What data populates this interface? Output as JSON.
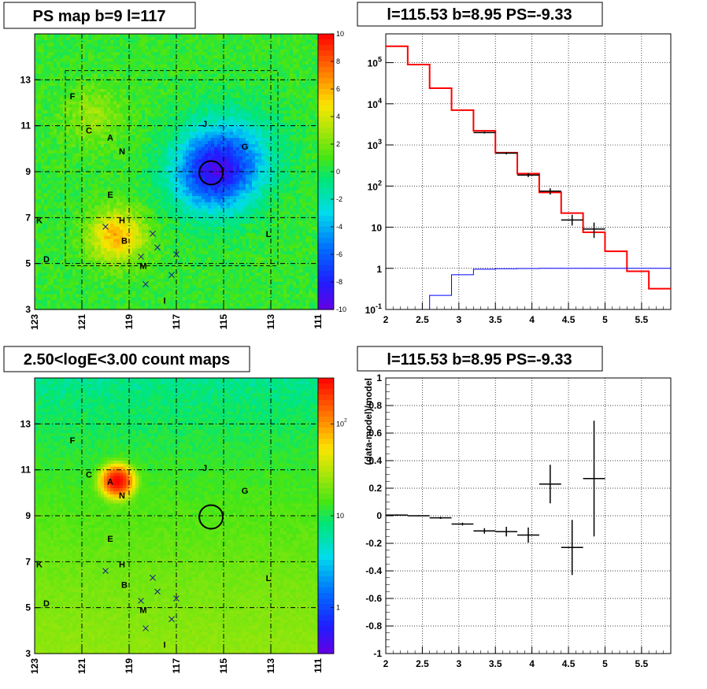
{
  "panels": {
    "tl_title": "PS map b=9 l=117",
    "tr_title": "l=115.53 b=8.95 PS=-9.33",
    "bl_title": "2.50<logE<3.00 count maps",
    "br_title": "l=115.53 b=8.95 PS=-9.33"
  },
  "chart_data": [
    {
      "type": "heatmap",
      "name": "ps_map",
      "title": "PS map b=9 l=117",
      "x_ticks": [
        "123",
        "121",
        "119",
        "117",
        "115",
        "113",
        "111"
      ],
      "y_ticks": [
        "3",
        "5",
        "7",
        "9",
        "11",
        "13"
      ],
      "xlim": [
        123,
        111
      ],
      "ylim": [
        3,
        15
      ],
      "colorbar_ticks": [
        "10",
        "8",
        "6",
        "4",
        "2",
        "0",
        "-2",
        "-4",
        "-6",
        "-8",
        "-10"
      ],
      "zlim": [
        -10,
        10
      ],
      "blobs": [
        {
          "l": 115.5,
          "b": 8.9,
          "value": -7.5,
          "sigma": 1.2
        },
        {
          "l": 114.5,
          "b": 9.8,
          "value": -3.5,
          "sigma": 1.3
        },
        {
          "l": 119.5,
          "b": 6.2,
          "value": 5.5,
          "sigma": 0.8
        },
        {
          "l": 120.5,
          "b": 11.4,
          "value": 2.0,
          "sigma": 0.9
        }
      ],
      "circle": {
        "l": 115.53,
        "b": 8.95
      },
      "crosses": [
        {
          "l": 120.0,
          "b": 6.6
        },
        {
          "l": 118.0,
          "b": 6.3
        },
        {
          "l": 117.8,
          "b": 5.7
        },
        {
          "l": 117.0,
          "b": 5.4
        },
        {
          "l": 118.5,
          "b": 5.3
        },
        {
          "l": 118.3,
          "b": 4.1
        },
        {
          "l": 117.2,
          "b": 4.5
        }
      ],
      "labels": [
        {
          "t": "F",
          "l": 121.4,
          "b": 12.3
        },
        {
          "t": "C",
          "l": 120.7,
          "b": 10.8
        },
        {
          "t": "A",
          "l": 119.8,
          "b": 10.5
        },
        {
          "t": "N",
          "l": 119.3,
          "b": 9.9
        },
        {
          "t": "J",
          "l": 115.8,
          "b": 11.1
        },
        {
          "t": "G",
          "l": 114.1,
          "b": 10.1
        },
        {
          "t": "E",
          "l": 119.8,
          "b": 8.0
        },
        {
          "t": "K",
          "l": 122.8,
          "b": 6.9
        },
        {
          "t": "H",
          "l": 119.3,
          "b": 6.9
        },
        {
          "t": "B",
          "l": 119.2,
          "b": 6.0
        },
        {
          "t": "L",
          "l": 113.1,
          "b": 6.3
        },
        {
          "t": "D",
          "l": 122.5,
          "b": 5.2
        },
        {
          "t": "M",
          "l": 118.4,
          "b": 4.9
        },
        {
          "t": "I",
          "l": 117.5,
          "b": 3.4
        }
      ]
    },
    {
      "type": "line",
      "name": "spectrum",
      "title": "l=115.53 b=8.95 PS=-9.33",
      "x_ticks": [
        "2",
        "2.5",
        "3",
        "3.5",
        "4",
        "4.5",
        "5",
        "5.5"
      ],
      "y_ticks": [
        "10^-1",
        "1",
        "10",
        "10^2",
        "10^3",
        "10^4",
        "10^5"
      ],
      "xlim": [
        2,
        5.9
      ],
      "ylim_log10": [
        -1,
        5.7
      ],
      "bin_edges": [
        2.0,
        2.3,
        2.6,
        2.9,
        3.2,
        3.5,
        3.8,
        4.1,
        4.4,
        4.7,
        5.0,
        5.3,
        5.6,
        5.9
      ],
      "series": [
        {
          "color": "#ff0000",
          "values": [
            250000,
            90000,
            24000,
            7000,
            2200,
            650,
            200,
            70,
            22,
            7.5,
            2.6,
            0.85,
            0.32
          ]
        },
        {
          "color": "#0000ff",
          "values": [
            0.05,
            0.05,
            0.22,
            0.7,
            0.95,
            0.98,
            0.99,
            1.0,
            1.0,
            1.0,
            1.0,
            1.0,
            1.0
          ]
        },
        {
          "color": "#000000",
          "points": [
            {
              "x": 3.35,
              "y": 2000,
              "ylo": 1900,
              "yhi": 2100
            },
            {
              "x": 3.65,
              "y": 630,
              "ylo": 590,
              "yhi": 670
            },
            {
              "x": 3.95,
              "y": 185,
              "ylo": 165,
              "yhi": 205
            },
            {
              "x": 4.25,
              "y": 75,
              "ylo": 62,
              "yhi": 88
            },
            {
              "x": 4.55,
              "y": 15,
              "ylo": 11,
              "yhi": 20
            },
            {
              "x": 4.85,
              "y": 9,
              "ylo": 5.5,
              "yhi": 13
            }
          ]
        }
      ]
    },
    {
      "type": "heatmap",
      "name": "count_map",
      "title": "2.50<logE<3.00 count maps",
      "x_ticks": [
        "123",
        "121",
        "119",
        "117",
        "115",
        "113",
        "111"
      ],
      "y_ticks": [
        "3",
        "5",
        "7",
        "9",
        "11",
        "13"
      ],
      "colorbar_ticks": [
        "10^2",
        "10",
        "1"
      ],
      "zlim_log10": [
        -0.5,
        2.5
      ],
      "source": {
        "l": 119.5,
        "b": 10.5,
        "counts": 300
      }
    },
    {
      "type": "scatter",
      "name": "residuals",
      "title": "l=115.53 b=8.95 PS=-9.33",
      "ylabel": "(data-model)/model",
      "x_ticks": [
        "2",
        "2.5",
        "3",
        "3.5",
        "4",
        "4.5",
        "5",
        "5.5"
      ],
      "y_ticks": [
        "-1",
        "-0.8",
        "-0.6",
        "-0.4",
        "-0.2",
        "0",
        "0.2",
        "0.4",
        "0.6",
        "0.8",
        "1"
      ],
      "xlim": [
        2,
        5.9
      ],
      "ylim": [
        -1,
        1
      ],
      "points": [
        {
          "x": 2.15,
          "y": 0.005,
          "err": 0.005
        },
        {
          "x": 2.45,
          "y": 0.0,
          "err": 0.005
        },
        {
          "x": 2.75,
          "y": -0.015,
          "err": 0.008
        },
        {
          "x": 3.05,
          "y": -0.06,
          "err": 0.01
        },
        {
          "x": 3.35,
          "y": -0.11,
          "err": 0.02
        },
        {
          "x": 3.65,
          "y": -0.115,
          "err": 0.035
        },
        {
          "x": 3.95,
          "y": -0.14,
          "err": 0.055
        },
        {
          "x": 4.25,
          "y": 0.23,
          "err": 0.14
        },
        {
          "x": 4.55,
          "y": -0.23,
          "err": 0.2
        },
        {
          "x": 4.85,
          "y": 0.27,
          "err": 0.42
        }
      ]
    }
  ]
}
